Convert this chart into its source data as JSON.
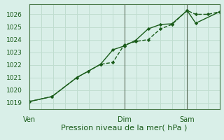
{
  "title": "",
  "xlabel": "Pression niveau de la mer( hPa )",
  "background_color": "#d9efe8",
  "grid_color": "#c0ddd0",
  "line_color": "#1a5c1a",
  "spine_color": "#4a7a4a",
  "ylim": [
    1018.5,
    1026.8
  ],
  "yticks": [
    1019,
    1020,
    1021,
    1022,
    1023,
    1024,
    1025,
    1026
  ],
  "xtick_labels": [
    "Ven",
    "Dim",
    "Sam"
  ],
  "xtick_positions": [
    0.0,
    0.5,
    0.83
  ],
  "x_total": 1.0,
  "series1_x": [
    0.0,
    0.12,
    0.25,
    0.375,
    0.44,
    0.5,
    0.56,
    0.625,
    0.69,
    0.75,
    0.83,
    0.875,
    0.94,
    1.0
  ],
  "series1_y": [
    1019.1,
    1019.5,
    1021.0,
    1022.05,
    1022.2,
    1023.6,
    1023.85,
    1024.0,
    1024.85,
    1025.2,
    1026.3,
    1026.0,
    1026.0,
    1026.2
  ],
  "series2_x": [
    0.0,
    0.12,
    0.25,
    0.31,
    0.375,
    0.44,
    0.5,
    0.56,
    0.625,
    0.69,
    0.75,
    0.83,
    0.875,
    1.0
  ],
  "series2_y": [
    1019.1,
    1019.5,
    1021.0,
    1021.5,
    1022.05,
    1023.2,
    1023.5,
    1023.95,
    1024.85,
    1025.2,
    1025.25,
    1026.3,
    1025.3,
    1026.2
  ],
  "vline_positions": [
    0.5,
    0.83
  ],
  "vline_color": "#5a6e5a",
  "xlabel_fontsize": 8,
  "ytick_fontsize": 6.5,
  "xtick_fontsize": 7
}
